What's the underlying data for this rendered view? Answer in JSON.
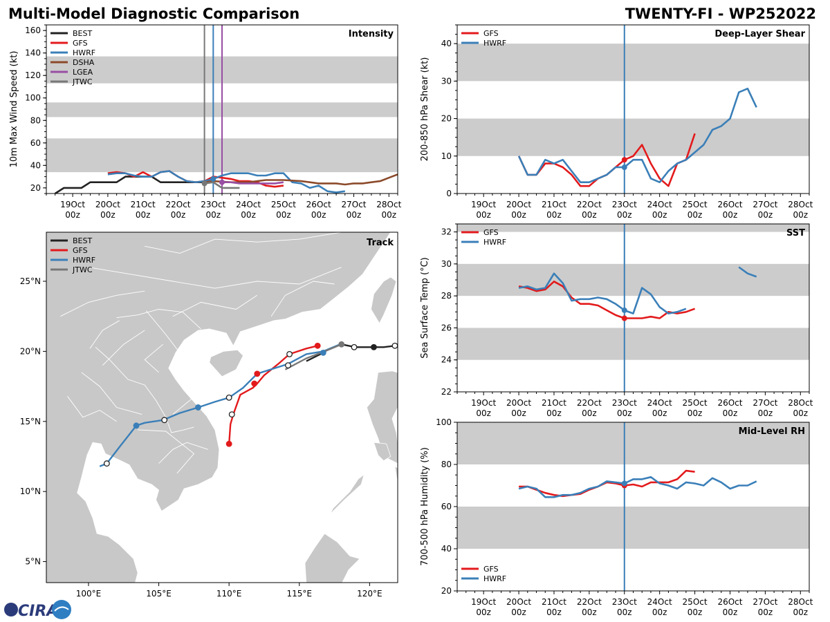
{
  "header": {
    "title": "Multi-Model Diagnostic Comparison",
    "storm_id": "TWENTY-FI - WP252022"
  },
  "colors": {
    "BEST": "#222222",
    "GFS": "#e31a1c",
    "HWRF": "#3a7fb8",
    "DSHA": "#8c4a2a",
    "LGEA": "#984ea3",
    "JTWC": "#777777",
    "band": "#cccccc",
    "land": "#c8c8c8",
    "nowline": "#3a7fb8"
  },
  "time_axis": {
    "dates": [
      "19Oct",
      "20Oct",
      "21Oct",
      "22Oct",
      "23Oct",
      "24Oct",
      "25Oct",
      "26Oct",
      "27Oct",
      "28Oct"
    ],
    "hour_label": "00z"
  },
  "logo": {
    "text": "CIRA"
  },
  "chart_data": [
    {
      "id": "intensity",
      "type": "line",
      "title": "Intensity",
      "ylabel": "10m Max Wind Speed (kt)",
      "xlim": [
        18.25,
        28.25
      ],
      "ylim": [
        15,
        165
      ],
      "yticks": [
        20,
        40,
        60,
        80,
        100,
        120,
        140,
        160
      ],
      "bands": [
        [
          34,
          64
        ],
        [
          83,
          96
        ],
        [
          113,
          137
        ]
      ],
      "legend": [
        "BEST",
        "GFS",
        "HWRF",
        "DSHA",
        "LGEA",
        "JTWC"
      ],
      "vlines": [
        {
          "x": 22.75,
          "color": "JTWC"
        },
        {
          "x": 23.0,
          "color": "HWRF"
        },
        {
          "x": 23.25,
          "color": "LGEA"
        }
      ],
      "series": [
        {
          "name": "BEST",
          "x": [
            18.5,
            18.75,
            19.0,
            19.25,
            19.5,
            19.75,
            20.0,
            20.25,
            20.5,
            20.75,
            21.0,
            21.25,
            21.5,
            21.75,
            22.0,
            22.25,
            22.5,
            22.75,
            23.0
          ],
          "y": [
            15,
            20,
            20,
            20,
            25,
            25,
            25,
            25,
            30,
            30,
            30,
            30,
            25,
            25,
            25,
            25,
            25,
            25,
            30
          ]
        },
        {
          "name": "GFS",
          "x": [
            20.0,
            20.25,
            20.5,
            20.75,
            21.0,
            21.25,
            21.5,
            21.75,
            22.0,
            22.25,
            22.5,
            22.75,
            23.0,
            23.25,
            23.5,
            23.75,
            24.0,
            24.25,
            24.5,
            24.75,
            25.0
          ],
          "y": [
            33,
            34,
            33,
            30,
            34,
            30,
            34,
            35,
            30,
            26,
            25,
            26,
            30,
            29,
            28,
            26,
            26,
            25,
            22,
            21,
            22
          ]
        },
        {
          "name": "HWRF",
          "x": [
            20.0,
            20.25,
            20.5,
            20.75,
            21.0,
            21.25,
            21.5,
            21.75,
            22.0,
            22.25,
            22.5,
            22.75,
            23.0,
            23.25,
            23.5,
            23.75,
            24.0,
            24.25,
            24.5,
            24.75,
            25.0,
            25.25,
            25.5,
            25.75,
            26.0,
            26.25,
            26.5,
            26.75
          ],
          "y": [
            32,
            33,
            33,
            31,
            30,
            30,
            34,
            35,
            30,
            26,
            25,
            26,
            28,
            31,
            33,
            33,
            33,
            31,
            31,
            33,
            33,
            25,
            24,
            20,
            22,
            17,
            16,
            17
          ]
        },
        {
          "name": "DSHA",
          "x": [
            22.75,
            23.0,
            23.5,
            24.0,
            24.5,
            25.0,
            25.5,
            25.75,
            26.0,
            26.5,
            26.75,
            27.0,
            27.25,
            27.5,
            27.75,
            28.0,
            28.25
          ],
          "y": [
            25,
            26,
            25,
            25,
            27,
            27,
            26,
            25,
            24,
            24,
            23,
            24,
            24,
            25,
            26,
            29,
            32
          ]
        },
        {
          "name": "LGEA",
          "x": [
            23.25,
            23.5,
            23.75,
            24.0,
            24.25,
            24.5,
            24.75,
            25.0
          ],
          "y": [
            25,
            25,
            24,
            24,
            24,
            24,
            24,
            25
          ]
        },
        {
          "name": "JTWC",
          "x": [
            22.75,
            23.0,
            23.25,
            23.5,
            23.75
          ],
          "y": [
            24,
            25,
            20,
            20,
            20
          ]
        }
      ],
      "markers": [
        {
          "series": "JTWC",
          "x": 22.75,
          "y": 24
        },
        {
          "series": "HWRF",
          "x": 23.0,
          "y": 28
        },
        {
          "series": "LGEA",
          "x": 23.25,
          "y": 25
        }
      ]
    },
    {
      "id": "shear",
      "type": "line",
      "title": "Deep-Layer Shear",
      "ylabel": "200-850 hPa Shear (kt)",
      "xlim": [
        18.25,
        28.25
      ],
      "ylim": [
        0,
        45
      ],
      "yticks": [
        0,
        10,
        20,
        30,
        40
      ],
      "bands": [
        [
          10,
          20
        ],
        [
          30,
          40
        ]
      ],
      "legend": [
        "GFS",
        "HWRF"
      ],
      "vlines": [
        {
          "x": 23.0,
          "color": "nowline"
        }
      ],
      "series": [
        {
          "name": "GFS",
          "x": [
            20.0,
            20.25,
            20.5,
            20.75,
            21.0,
            21.25,
            21.5,
            21.75,
            22.0,
            22.25,
            22.5,
            22.75,
            23.0,
            23.25,
            23.5,
            23.75,
            24.0,
            24.25,
            24.5,
            24.75,
            25.0
          ],
          "y": [
            10,
            5,
            5,
            8,
            8,
            7,
            5,
            2,
            2,
            4,
            5,
            7,
            9,
            10,
            13,
            8,
            4,
            2,
            8,
            9,
            16
          ]
        },
        {
          "name": "HWRF",
          "x": [
            20.0,
            20.25,
            20.5,
            20.75,
            21.0,
            21.25,
            21.5,
            21.75,
            22.0,
            22.25,
            22.5,
            22.75,
            23.0,
            23.25,
            23.5,
            23.75,
            24.0,
            24.25,
            24.5,
            24.75,
            25.0,
            25.25,
            25.5,
            25.75,
            26.0,
            26.25,
            26.5,
            26.75
          ],
          "y": [
            10,
            5,
            5,
            9,
            8,
            9,
            6,
            3,
            3,
            4,
            5,
            7,
            7,
            9,
            9,
            4,
            3,
            6,
            8,
            9,
            11,
            13,
            17,
            18,
            20,
            27,
            28,
            23
          ]
        }
      ],
      "markers": [
        {
          "series": "GFS",
          "x": 23.0,
          "y": 9
        },
        {
          "series": "HWRF",
          "x": 23.0,
          "y": 7
        }
      ]
    },
    {
      "id": "sst",
      "type": "line",
      "title": "SST",
      "ylabel": "Sea Surface Temp (°C)",
      "xlim": [
        18.25,
        28.25
      ],
      "ylim": [
        22,
        32.5
      ],
      "yticks": [
        22,
        24,
        26,
        28,
        30,
        32
      ],
      "bands": [
        [
          24,
          26
        ],
        [
          28,
          30
        ],
        [
          32,
          34
        ]
      ],
      "legend": [
        "GFS",
        "HWRF"
      ],
      "vlines": [
        {
          "x": 23.0,
          "color": "nowline"
        }
      ],
      "series": [
        {
          "name": "GFS",
          "x": [
            20.0,
            20.25,
            20.5,
            20.75,
            21.0,
            21.25,
            21.5,
            21.75,
            22.0,
            22.25,
            22.5,
            22.75,
            23.0,
            23.25,
            23.5,
            23.75,
            24.0,
            24.25,
            24.5,
            24.75,
            25.0
          ],
          "y": [
            28.6,
            28.5,
            28.3,
            28.4,
            28.9,
            28.6,
            27.9,
            27.5,
            27.5,
            27.4,
            27.1,
            26.8,
            26.6,
            26.6,
            26.6,
            26.7,
            26.6,
            27.0,
            26.9,
            27.0,
            27.2
          ]
        },
        {
          "name": "HWRF",
          "x": [
            20.0,
            20.25,
            20.5,
            20.75,
            21.0,
            21.25,
            21.5,
            21.75,
            22.0,
            22.25,
            22.5,
            22.75,
            23.0,
            23.25,
            23.5,
            23.75,
            24.0,
            24.25,
            24.5,
            24.75
          ],
          "y": [
            28.5,
            28.6,
            28.4,
            28.5,
            29.4,
            28.8,
            27.7,
            27.8,
            27.8,
            27.9,
            27.8,
            27.5,
            27.1,
            26.9,
            28.5,
            28.1,
            27.3,
            26.9,
            27.0,
            27.2
          ]
        },
        {
          "name": "HWRF",
          "x": [
            26.25,
            26.5,
            26.75
          ],
          "y": [
            29.8,
            29.4,
            29.2
          ]
        }
      ],
      "markers": [
        {
          "series": "GFS",
          "x": 23.0,
          "y": 26.6
        },
        {
          "series": "HWRF",
          "x": 23.0,
          "y": 27.1
        }
      ]
    },
    {
      "id": "rh",
      "type": "line",
      "title": "Mid-Level RH",
      "ylabel": "700-500 hPa Humidity (%)",
      "xlim": [
        18.25,
        28.25
      ],
      "ylim": [
        20,
        100
      ],
      "yticks": [
        20,
        40,
        60,
        80,
        100
      ],
      "bands": [
        [
          40,
          60
        ],
        [
          80,
          100
        ]
      ],
      "legend": [
        "GFS",
        "HWRF"
      ],
      "vlines": [
        {
          "x": 23.0,
          "color": "nowline"
        }
      ],
      "series": [
        {
          "name": "GFS",
          "x": [
            20.0,
            20.25,
            20.5,
            20.75,
            21.0,
            21.25,
            21.5,
            21.75,
            22.0,
            22.25,
            22.5,
            22.75,
            23.0,
            23.25,
            23.5,
            23.75,
            24.0,
            24.25,
            24.5,
            24.75,
            25.0
          ],
          "y": [
            69.5,
            69.5,
            68,
            66.5,
            65.5,
            65,
            65.5,
            66,
            68,
            69.5,
            71.5,
            71,
            70,
            70.5,
            69.5,
            71.5,
            71.5,
            71.5,
            73,
            77,
            76.5
          ]
        },
        {
          "name": "HWRF",
          "x": [
            20.0,
            20.25,
            20.5,
            20.75,
            21.0,
            21.25,
            21.5,
            21.75,
            22.0,
            22.25,
            22.5,
            22.75,
            23.0,
            23.25,
            23.5,
            23.75,
            24.0,
            24.25,
            24.5,
            24.75,
            25.0,
            25.25,
            25.5,
            25.75,
            26.0,
            26.25,
            26.5,
            26.75
          ],
          "y": [
            68.5,
            69.5,
            68.5,
            64.5,
            64.5,
            65.5,
            65.5,
            66.5,
            68.5,
            69.5,
            72,
            71.5,
            71,
            73,
            73,
            74,
            71,
            70,
            68.5,
            71.5,
            71,
            70,
            73.5,
            71.5,
            68.5,
            70,
            70,
            72
          ]
        }
      ],
      "markers": [
        {
          "series": "GFS",
          "x": 23.0,
          "y": 70
        },
        {
          "series": "HWRF",
          "x": 23.0,
          "y": 71
        }
      ]
    },
    {
      "id": "track",
      "type": "line",
      "title": "Track",
      "xlim": [
        97,
        122
      ],
      "ylim": [
        3.5,
        28.5
      ],
      "xticks": [
        100,
        105,
        110,
        115,
        120
      ],
      "xtick_labels": [
        "100°E",
        "105°E",
        "110°E",
        "115°E",
        "120°E"
      ],
      "yticks": [
        5,
        10,
        15,
        20,
        25
      ],
      "ytick_labels": [
        "5°N",
        "10°N",
        "15°N",
        "20°N",
        "25°N"
      ],
      "legend": [
        "BEST",
        "GFS",
        "HWRF",
        "JTWC"
      ],
      "series": [
        {
          "name": "BEST",
          "lon": [
            121.8,
            121.0,
            120.3,
            119.0,
            118.5,
            118.0,
            117.5,
            117.0,
            116.5,
            115.5
          ],
          "lat": [
            20.4,
            20.3,
            20.3,
            20.3,
            20.4,
            20.5,
            20.3,
            20.1,
            19.8,
            19.3
          ]
        },
        {
          "name": "GFS",
          "lon": [
            116.3,
            115.5,
            114.3,
            113.5,
            112.5,
            112.0,
            111.7,
            110.8,
            110.3,
            110.1,
            110.0
          ],
          "lat": [
            20.4,
            20.2,
            19.8,
            19.1,
            18.3,
            17.7,
            17.4,
            16.9,
            15.5,
            14.8,
            13.4
          ]
        },
        {
          "name": "HWRF",
          "lon": [
            117.9,
            116.7,
            115.5,
            114.2,
            112.0,
            111.0,
            110.0,
            109.0,
            107.8,
            106.5,
            105.3,
            104.0,
            103.4,
            102.3,
            101.3,
            100.8
          ],
          "lat": [
            20.5,
            20.0,
            19.8,
            19.1,
            18.4,
            17.4,
            16.7,
            16.4,
            16.0,
            15.6,
            15.1,
            14.9,
            14.7,
            13.3,
            12.0,
            11.8
          ]
        },
        {
          "name": "JTWC",
          "lon": [
            118.0,
            116.8,
            115.5,
            114.0
          ],
          "lat": [
            20.5,
            20.0,
            19.5,
            18.7
          ]
        }
      ],
      "points": [
        {
          "series": "BEST",
          "lon": 121.8,
          "lat": 20.4,
          "fill": "white"
        },
        {
          "series": "BEST",
          "lon": 120.3,
          "lat": 20.3,
          "fill": "solid"
        },
        {
          "series": "BEST",
          "lon": 118.9,
          "lat": 20.3,
          "fill": "white"
        },
        {
          "series": "GFS",
          "lon": 116.3,
          "lat": 20.4,
          "fill": "solid"
        },
        {
          "series": "GFS",
          "lon": 114.3,
          "lat": 19.8,
          "fill": "white"
        },
        {
          "series": "GFS",
          "lon": 112.0,
          "lat": 18.4,
          "fill": "solid"
        },
        {
          "series": "GFS",
          "lon": 111.8,
          "lat": 17.7,
          "fill": "solid"
        },
        {
          "series": "GFS",
          "lon": 110.2,
          "lat": 15.5,
          "fill": "white"
        },
        {
          "series": "GFS",
          "lon": 110.0,
          "lat": 13.4,
          "fill": "solid"
        },
        {
          "series": "HWRF",
          "lon": 116.7,
          "lat": 19.9,
          "fill": "solid"
        },
        {
          "series": "HWRF",
          "lon": 114.2,
          "lat": 19.0,
          "fill": "white"
        },
        {
          "series": "HWRF",
          "lon": 110.0,
          "lat": 16.7,
          "fill": "white"
        },
        {
          "series": "HWRF",
          "lon": 107.8,
          "lat": 16.0,
          "fill": "solid"
        },
        {
          "series": "HWRF",
          "lon": 105.4,
          "lat": 15.1,
          "fill": "white"
        },
        {
          "series": "HWRF",
          "lon": 103.4,
          "lat": 14.7,
          "fill": "solid"
        },
        {
          "series": "HWRF",
          "lon": 101.3,
          "lat": 12.0,
          "fill": "white"
        },
        {
          "series": "JTWC",
          "lon": 118.0,
          "lat": 20.5,
          "fill": "grey"
        }
      ]
    }
  ]
}
